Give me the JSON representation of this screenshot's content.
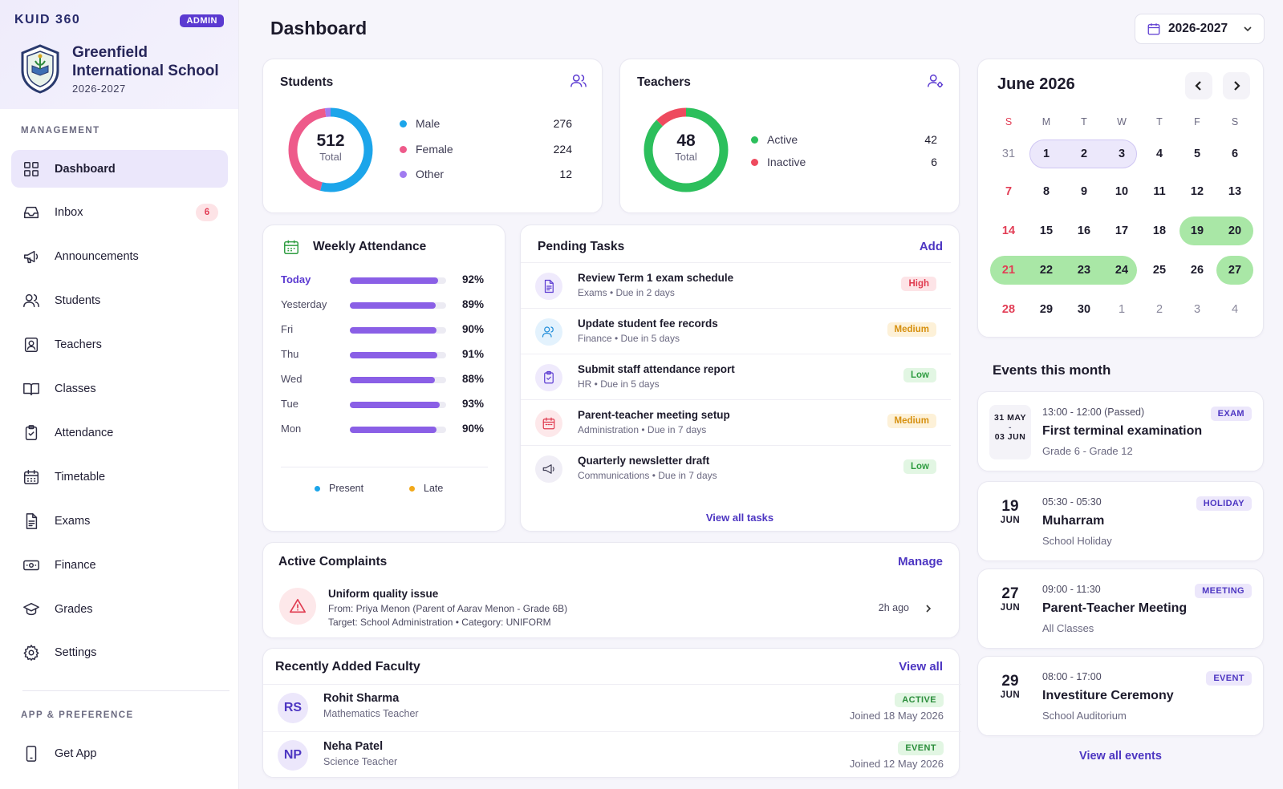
{
  "colors": {
    "accent": "#5b3ad1",
    "male": "#1ca5ea",
    "female": "#ee5a8a",
    "other": "#a17bf0",
    "active": "#2cbf5c",
    "inactive": "#ee4a5e",
    "bar": "#8a5fe6"
  },
  "sidebar": {
    "brand": "KUID 360",
    "badge": "ADMIN",
    "school_name_line1": "Greenfield",
    "school_name_line2": "International School",
    "school_year": "2026-2027",
    "section_management": "MANAGEMENT",
    "section_app": "APP & PREFERENCE",
    "items": [
      {
        "label": "Dashboard",
        "icon": "grid-icon"
      },
      {
        "label": "Inbox",
        "icon": "inbox-icon",
        "badge": "6"
      },
      {
        "label": "Announcements",
        "icon": "megaphone-icon"
      },
      {
        "label": "Students",
        "icon": "users-icon"
      },
      {
        "label": "Teachers",
        "icon": "id-card-icon"
      },
      {
        "label": "Classes",
        "icon": "book-icon"
      },
      {
        "label": "Attendance",
        "icon": "clipboard-icon"
      },
      {
        "label": "Timetable",
        "icon": "calendar-icon"
      },
      {
        "label": "Exams",
        "icon": "document-icon"
      },
      {
        "label": "Finance",
        "icon": "banknote-icon"
      },
      {
        "label": "Grades",
        "icon": "graduation-cap-icon"
      },
      {
        "label": "Settings",
        "icon": "gear-icon"
      }
    ],
    "get_app": "Get App"
  },
  "header": {
    "title": "Dashboard",
    "year_selected": "2026-2027"
  },
  "students": {
    "title": "Students",
    "total": "512",
    "total_label": "Total",
    "rows": [
      {
        "label": "Male",
        "value": 276
      },
      {
        "label": "Female",
        "value": 224
      },
      {
        "label": "Other",
        "value": 12
      }
    ]
  },
  "teachers": {
    "title": "Teachers",
    "total": "48",
    "total_label": "Total",
    "rows": [
      {
        "label": "Active",
        "value": 42
      },
      {
        "label": "Inactive",
        "value": 6
      }
    ]
  },
  "attendance": {
    "title": "Weekly Attendance",
    "rows": [
      {
        "day": "Today",
        "pct": "92%",
        "value": 0.92
      },
      {
        "day": "Yesterday",
        "pct": "89%",
        "value": 0.89
      },
      {
        "day": "Fri",
        "pct": "90%",
        "value": 0.9
      },
      {
        "day": "Thu",
        "pct": "91%",
        "value": 0.91
      },
      {
        "day": "Wed",
        "pct": "88%",
        "value": 0.88
      },
      {
        "day": "Tue",
        "pct": "93%",
        "value": 0.93
      },
      {
        "day": "Mon",
        "pct": "90%",
        "value": 0.9
      }
    ],
    "legend_present": "Present",
    "legend_late": "Late"
  },
  "tasks": {
    "title": "Pending Tasks",
    "add": "Add",
    "view_all": "View all tasks",
    "items": [
      {
        "title": "Review Term 1 exam schedule",
        "sub": "Exams  •  Due in 2 days",
        "priority": "High"
      },
      {
        "title": "Update student fee records",
        "sub": "Finance  •  Due in 5 days",
        "priority": "Medium"
      },
      {
        "title": "Submit staff attendance report",
        "sub": "HR  •  Due in 5 days",
        "priority": "Low"
      },
      {
        "title": "Parent-teacher meeting setup",
        "sub": "Administration  •  Due in 7 days",
        "priority": "Medium"
      },
      {
        "title": "Quarterly newsletter draft",
        "sub": "Communications  •  Due in 7 days",
        "priority": "Low"
      }
    ]
  },
  "complaints": {
    "title": "Active Complaints",
    "manage": "Manage",
    "item": {
      "title": "Uniform quality issue",
      "from": "From: Priya Menon (Parent of Aarav Menon - Grade 6B)",
      "target": "Target: School Administration  •  Category: UNIFORM",
      "time": "2h ago"
    }
  },
  "faculty": {
    "title": "Recently Added Faculty",
    "view_all": "View all",
    "items": [
      {
        "initials": "RS",
        "name": "Rohit Sharma",
        "role": "Mathematics Teacher",
        "status": "ACTIVE",
        "joined": "Joined 18 May 2026"
      },
      {
        "initials": "NP",
        "name": "Neha Patel",
        "role": "Science Teacher",
        "status": "EVENT",
        "joined": "Joined 12 May 2026"
      }
    ]
  },
  "calendar": {
    "month": "June 2026",
    "weekdays": [
      "S",
      "M",
      "T",
      "W",
      "T",
      "F",
      "S"
    ],
    "weeks": [
      [
        "31",
        "1",
        "2",
        "3",
        "4",
        "5",
        "6"
      ],
      [
        "7",
        "8",
        "9",
        "10",
        "11",
        "12",
        "13"
      ],
      [
        "14",
        "15",
        "16",
        "17",
        "18",
        "19",
        "20"
      ],
      [
        "21",
        "22",
        "23",
        "24",
        "25",
        "26",
        "27"
      ],
      [
        "28",
        "29",
        "30",
        "1",
        "2",
        "3",
        "4"
      ]
    ]
  },
  "events": {
    "title": "Events this month",
    "view_all": "View all events",
    "items": [
      {
        "day": "31 MAY",
        "mon": "03 JUN",
        "sep": "-",
        "time": "13:00 - 12:00 (Passed)",
        "title": "First terminal examination",
        "sub": "Grade 6 - Grade 12",
        "tag": "EXAM"
      },
      {
        "day": "19",
        "mon": "JUN",
        "time": "05:30 - 05:30",
        "title": "Muharram",
        "sub": "School Holiday",
        "tag": "HOLIDAY"
      },
      {
        "day": "27",
        "mon": "JUN",
        "time": "09:00 - 11:30",
        "title": "Parent-Teacher Meeting",
        "sub": "All Classes",
        "tag": "MEETING"
      },
      {
        "day": "29",
        "mon": "JUN",
        "time": "08:00 - 17:00",
        "title": "Investiture Ceremony",
        "sub": "School Auditorium",
        "tag": "EVENT"
      }
    ]
  }
}
